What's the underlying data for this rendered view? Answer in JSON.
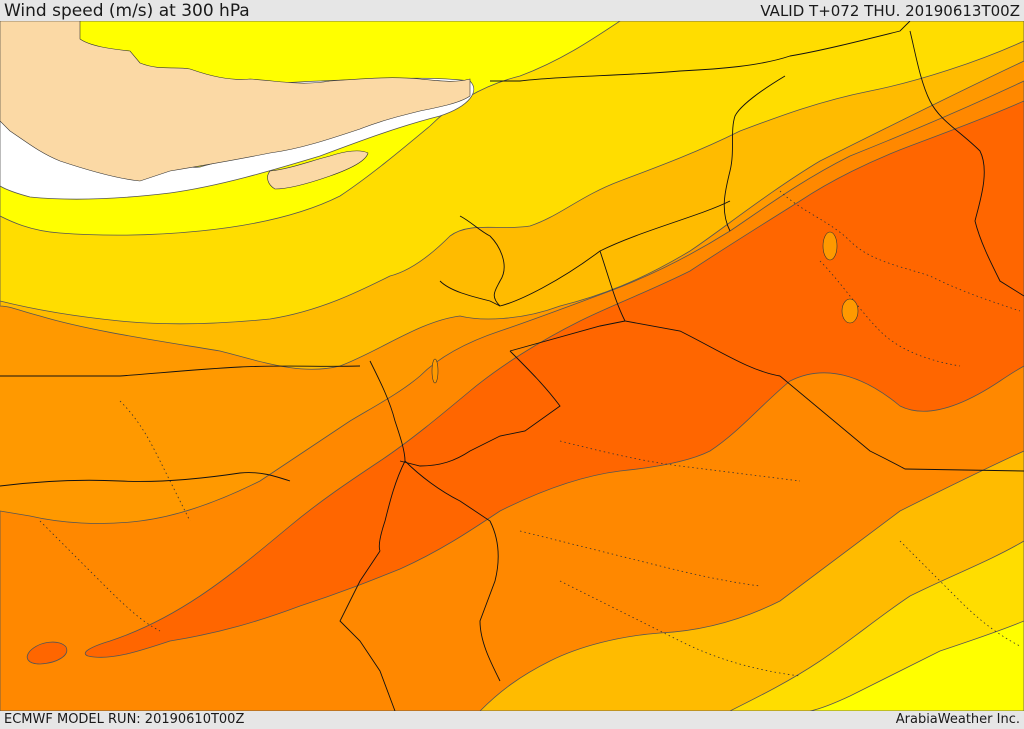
{
  "header": {
    "title": "Wind speed (m/s) at 300 hPa",
    "valid": "VALID T+072 THU. 20190613T00Z"
  },
  "footer": {
    "model_run": "ECMWF MODEL RUN: 20190610T00Z",
    "credit": "ArabiaWeather Inc."
  },
  "palette": {
    "land": "#fbd9a5",
    "calm": "#ffffff",
    "yellow_light": "#ffff00",
    "yellow": "#ffdd00",
    "amber": "#ffbb00",
    "orange_light": "#ff9900",
    "orange": "#ff8800",
    "orange_deep": "#ff6600",
    "contour": "#555555",
    "border": "#111111"
  }
}
